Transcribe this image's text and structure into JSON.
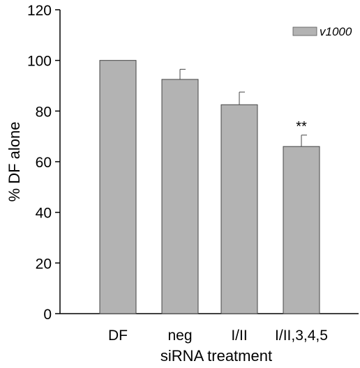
{
  "chart_data": {
    "type": "bar",
    "categories": [
      "DF",
      "neg",
      "I/II",
      "I/II,3,4,5"
    ],
    "series": [
      {
        "name": "v1000",
        "values": [
          100,
          92.5,
          82.5,
          66
        ],
        "errors": [
          0,
          4,
          5,
          4.5
        ]
      }
    ],
    "xlabel": "siRNA treatment",
    "ylabel": "% DF alone",
    "ylim": [
      0,
      120
    ],
    "yticks": [
      0,
      20,
      40,
      60,
      80,
      100,
      120
    ],
    "grid": false,
    "legend_position": "top-right",
    "bar_color": "#b3b3b3",
    "annotations": [
      {
        "category": "I/II,3,4,5",
        "text": "**"
      }
    ]
  }
}
